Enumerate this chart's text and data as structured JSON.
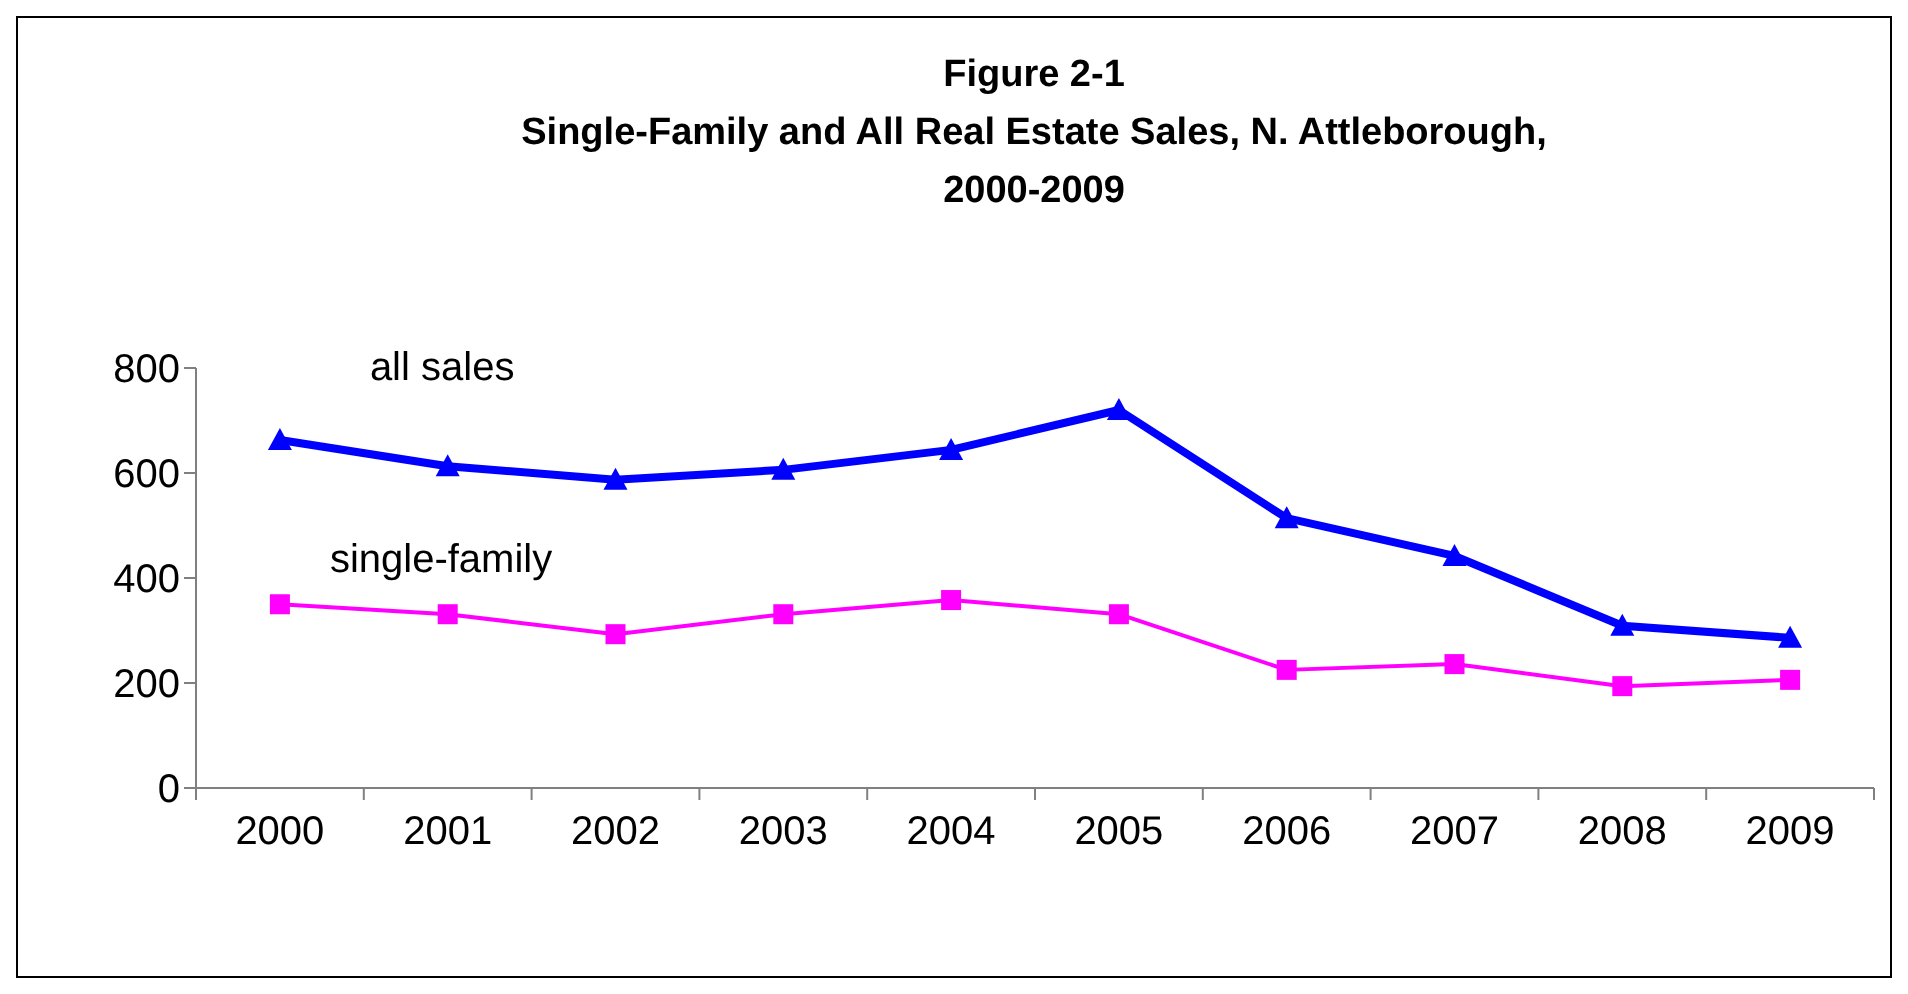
{
  "chart_data": {
    "type": "line",
    "title": "Figure 2-1\nSingle-Family and All Real Estate Sales, N. Attleborough,\n2000-2009",
    "categories": [
      "2000",
      "2001",
      "2002",
      "2003",
      "2004",
      "2005",
      "2006",
      "2007",
      "2008",
      "2009"
    ],
    "series": [
      {
        "name": "all sales",
        "color": "#0000ff",
        "marker": "triangle",
        "values": [
          663,
          613,
          587,
          606,
          644,
          720,
          514,
          442,
          309,
          286
        ]
      },
      {
        "name": "single-family",
        "color": "#ff00ff",
        "marker": "square",
        "values": [
          350,
          331,
          293,
          331,
          358,
          331,
          225,
          236,
          194,
          206
        ]
      }
    ],
    "ylim": [
      0,
      800
    ],
    "yticks": [
      0,
      200,
      400,
      600,
      800
    ],
    "grid": false,
    "legend": false
  }
}
